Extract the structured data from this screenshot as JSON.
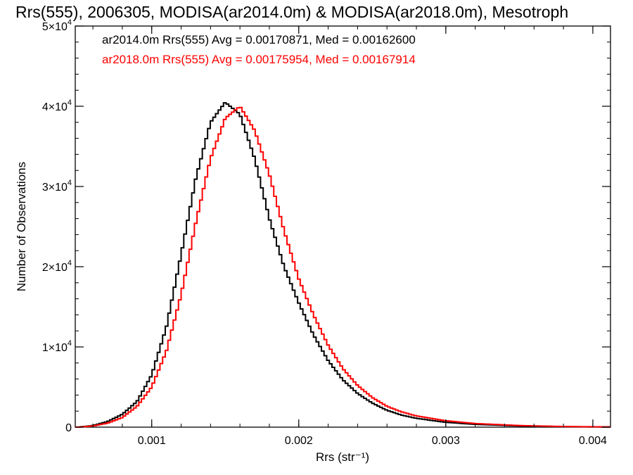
{
  "chart_data": {
    "type": "line",
    "title": "Rrs(555), 2006305, MODISA(ar2014.0m) & MODISA(ar2018.0m), Mesotroph",
    "xlabel": "Rrs (str⁻¹)",
    "ylabel": "Number of Observations",
    "xlim": [
      0.00048,
      0.00412
    ],
    "ylim": [
      0,
      50000
    ],
    "x_ticks": [
      {
        "value": 0.001,
        "label": "0.001"
      },
      {
        "value": 0.002,
        "label": "0.002"
      },
      {
        "value": 0.003,
        "label": "0.003"
      },
      {
        "value": 0.004,
        "label": "0.004"
      }
    ],
    "y_ticks": [
      {
        "value": 0,
        "mantissa": "0",
        "exponent": ""
      },
      {
        "value": 10000,
        "mantissa": "1×10",
        "exponent": "4"
      },
      {
        "value": 20000,
        "mantissa": "2×10",
        "exponent": "4"
      },
      {
        "value": 30000,
        "mantissa": "3×10",
        "exponent": "4"
      },
      {
        "value": 40000,
        "mantissa": "4×10",
        "exponent": "4"
      },
      {
        "value": 50000,
        "mantissa": "5×10",
        "exponent": "4"
      }
    ],
    "grid": false,
    "legend_position": "top-left",
    "series": [
      {
        "label": "ar2014.0m Rrs(555) Avg = 0.00170871, Med = 0.00162600",
        "color": "#000000",
        "points": [
          [
            0.0005,
            0
          ],
          [
            0.0006,
            200
          ],
          [
            0.0007,
            700
          ],
          [
            0.0008,
            1600
          ],
          [
            0.0009,
            3200
          ],
          [
            0.001,
            6500
          ],
          [
            0.0011,
            12500
          ],
          [
            0.0012,
            21500
          ],
          [
            0.0013,
            31000
          ],
          [
            0.0014,
            38000
          ],
          [
            0.0015,
            40500
          ],
          [
            0.0016,
            39000
          ],
          [
            0.0017,
            33500
          ],
          [
            0.0018,
            26000
          ],
          [
            0.0019,
            20000
          ],
          [
            0.002,
            15500
          ],
          [
            0.0021,
            11500
          ],
          [
            0.0022,
            8300
          ],
          [
            0.0023,
            5900
          ],
          [
            0.0024,
            4200
          ],
          [
            0.0025,
            3000
          ],
          [
            0.0026,
            2100
          ],
          [
            0.0027,
            1500
          ],
          [
            0.0028,
            1100
          ],
          [
            0.003,
            600
          ],
          [
            0.0032,
            350
          ],
          [
            0.0035,
            150
          ],
          [
            0.0038,
            60
          ],
          [
            0.0041,
            20
          ]
        ]
      },
      {
        "label": "ar2018.0m Rrs(555) Avg = 0.00175954, Med = 0.00167914",
        "color": "#ff0000",
        "points": [
          [
            0.0005,
            0
          ],
          [
            0.0006,
            150
          ],
          [
            0.0007,
            500
          ],
          [
            0.0008,
            1200
          ],
          [
            0.0009,
            2600
          ],
          [
            0.001,
            5000
          ],
          [
            0.0011,
            9500
          ],
          [
            0.0012,
            16500
          ],
          [
            0.0013,
            25500
          ],
          [
            0.0014,
            33500
          ],
          [
            0.0015,
            38500
          ],
          [
            0.0016,
            40000
          ],
          [
            0.0017,
            37000
          ],
          [
            0.0018,
            31500
          ],
          [
            0.0019,
            24500
          ],
          [
            0.002,
            18500
          ],
          [
            0.0021,
            14000
          ],
          [
            0.0022,
            10200
          ],
          [
            0.0023,
            7300
          ],
          [
            0.0024,
            5200
          ],
          [
            0.0025,
            3700
          ],
          [
            0.0026,
            2600
          ],
          [
            0.0027,
            1900
          ],
          [
            0.0028,
            1400
          ],
          [
            0.003,
            800
          ],
          [
            0.0032,
            450
          ],
          [
            0.0035,
            200
          ],
          [
            0.0038,
            80
          ],
          [
            0.0041,
            30
          ]
        ]
      }
    ]
  }
}
